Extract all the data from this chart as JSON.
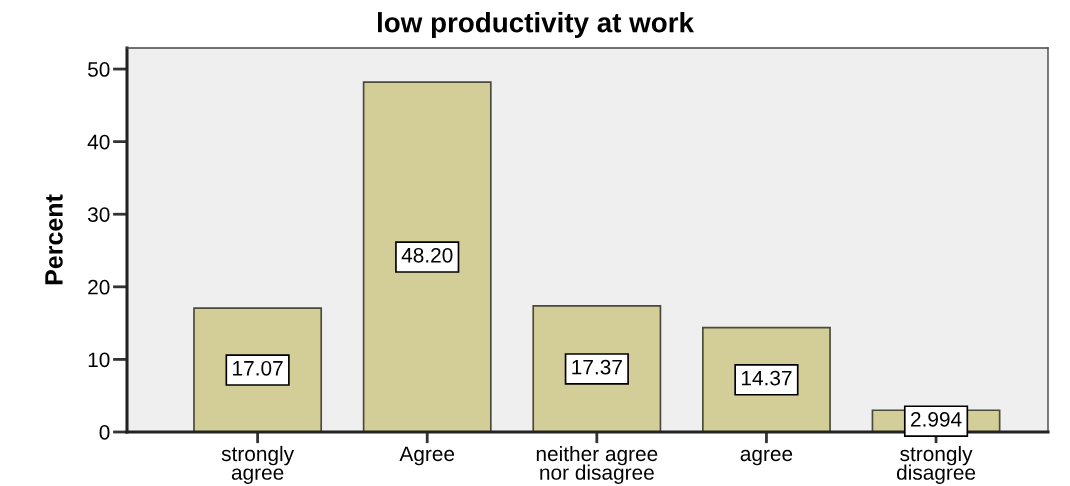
{
  "chart_data": {
    "type": "bar",
    "title": "low productivity at work",
    "ylabel": "Percent",
    "categories": [
      "strongly\nagree",
      "Agree",
      "neither agree\nnor disagree",
      "agree",
      "strongly\ndisagree"
    ],
    "values": [
      17.07,
      48.2,
      17.37,
      14.37,
      2.994
    ],
    "value_labels": [
      "17.07",
      "48.20",
      "17.37",
      "14.37",
      "2.994"
    ],
    "color": "#d3ce98",
    "ylim": [
      0,
      52.9
    ],
    "yticks": [
      0,
      10,
      20,
      30,
      40,
      50
    ],
    "grid": false,
    "legend": false
  }
}
